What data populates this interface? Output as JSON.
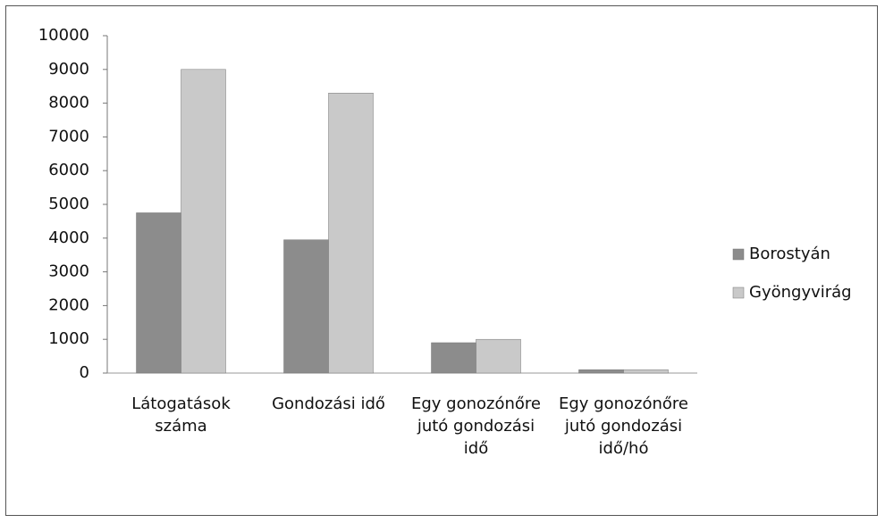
{
  "chart_data": {
    "type": "bar",
    "categories": [
      "Látogatások száma",
      "Gondozási idő",
      "Egy gonozónőre jutó gondozási idő",
      "Egy gonozónőre jutó gondozási idő/hó"
    ],
    "series": [
      {
        "name": "Borostyán",
        "color": "#8c8c8c",
        "values": [
          4750,
          3950,
          900,
          100
        ]
      },
      {
        "name": "Gyöngyvirág",
        "color": "#c9c9c9",
        "values": [
          9000,
          8300,
          1000,
          100
        ]
      }
    ],
    "ylim": [
      0,
      10000
    ],
    "yticks": [
      0,
      1000,
      2000,
      3000,
      4000,
      5000,
      6000,
      7000,
      8000,
      9000,
      10000
    ],
    "grid": false,
    "legend": "right"
  }
}
